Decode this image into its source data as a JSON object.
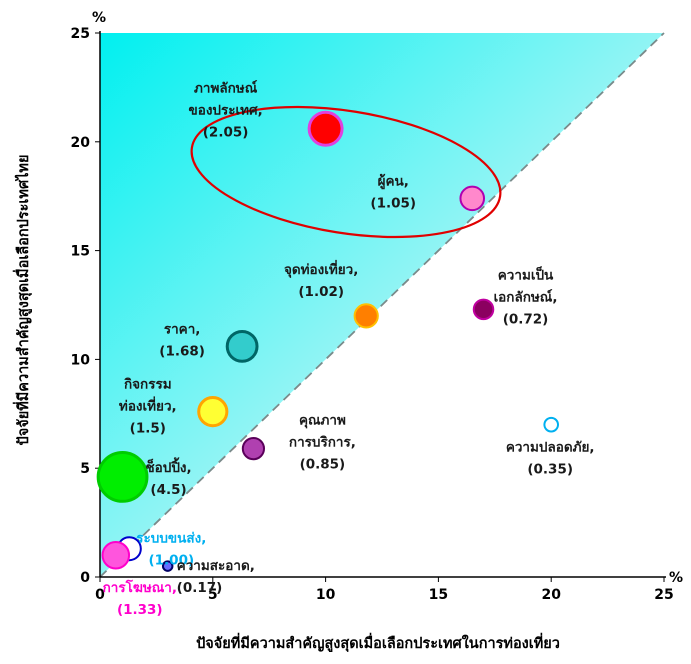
{
  "chart_data": {
    "type": "scatter",
    "subtype": "bubble",
    "xlabel": "ปัจจัยที่มีความสำคัญสูงสุดเมื่อเลือกประเทศในการท่องเที่ยว",
    "ylabel": "ปัจจัยที่มีความสำคัญสูงสุดเมื่อเลือกประเทศไทย",
    "x_unit": "%",
    "y_unit": "%",
    "xlim": [
      0,
      25
    ],
    "ylim": [
      0,
      25
    ],
    "xticks": [
      "0",
      "5",
      "10",
      "15",
      "20",
      "25"
    ],
    "yticks": [
      "0",
      "5",
      "10",
      "15",
      "20",
      "25"
    ],
    "grid": false,
    "shaded_region": "above diagonal y = x (cyan gradient)",
    "diagonal_line": "dashed y = x",
    "highlight": "red ellipse around ภาพลักษณ์ของประเทศ and ผู้คน",
    "points": [
      {
        "label": [
          "ภาพลักษณ์",
          "ของประเทศ,"
        ],
        "ratio": "(2.05)",
        "x": 10.0,
        "y": 20.6,
        "fill": "#ff0000",
        "stroke": "#e040e0",
        "label_color": "#1a1a1a"
      },
      {
        "label": [
          "ผู้คน,"
        ],
        "ratio": "(1.05)",
        "x": 16.5,
        "y": 17.4,
        "fill": "#ff88cc",
        "stroke": "#b000b0",
        "label_color": "#1a1a1a"
      },
      {
        "label": [
          "จุดท่องเที่ยว,"
        ],
        "ratio": "(1.02)",
        "x": 11.8,
        "y": 12.0,
        "fill": "#ff7f00",
        "stroke": "#ffc000",
        "label_color": "#1a1a1a"
      },
      {
        "label": [
          "ความเป็น",
          "เอกลักษณ์,"
        ],
        "ratio": "(0.72)",
        "x": 17.0,
        "y": 12.3,
        "fill": "#8b0060",
        "stroke": "#c000a0",
        "label_color": "#1a1a1a"
      },
      {
        "label": [
          "ราคา,"
        ],
        "ratio": "(1.68)",
        "x": 6.3,
        "y": 10.6,
        "fill": "#33cccc",
        "stroke": "#006666",
        "label_color": "#1a1a1a"
      },
      {
        "label": [
          "กิจกรรม",
          "ท่องเที่ยว,"
        ],
        "ratio": "(1.5)",
        "x": 5.0,
        "y": 7.6,
        "fill": "#ffff33",
        "stroke": "#ffa500",
        "label_color": "#1a1a1a"
      },
      {
        "label": [
          "คุณภาพ",
          "การบริการ,"
        ],
        "ratio": "(0.85)",
        "x": 6.8,
        "y": 5.9,
        "fill": "#b040b0",
        "stroke": "#5a005a",
        "label_color": "#1a1a1a"
      },
      {
        "label": [
          "ความปลอดภัย,"
        ],
        "ratio": "(0.35)",
        "x": 20.0,
        "y": 7.0,
        "fill": "#ffffff",
        "stroke": "#00b0f0",
        "label_color": "#1a1a1a"
      },
      {
        "label": [
          "ช็อปปิ้ง,"
        ],
        "ratio": "(4.5)",
        "x": 1.0,
        "y": 4.6,
        "fill": "#00ee00",
        "stroke": "#00cc00",
        "label_color": "#1a1a1a"
      },
      {
        "label": [
          "ระบบขนส่ง,"
        ],
        "ratio": "(1.00)",
        "x": 1.3,
        "y": 1.3,
        "fill": "#ffffff",
        "stroke": "#0000cc",
        "label_color": "#00b0f0"
      },
      {
        "label": [
          "ความสะอาด,"
        ],
        "ratio": "(0.17)",
        "x": 3.0,
        "y": 0.5,
        "fill": "#6a6aff",
        "stroke": "#000066",
        "label_color": "#1a1a1a"
      },
      {
        "label": [
          "การโฆษณา,"
        ],
        "ratio": "(1.33)",
        "x": 0.7,
        "y": 1.0,
        "fill": "#ff55dd",
        "stroke": "#ff00cc",
        "label_color": "#ff00cc"
      }
    ]
  }
}
